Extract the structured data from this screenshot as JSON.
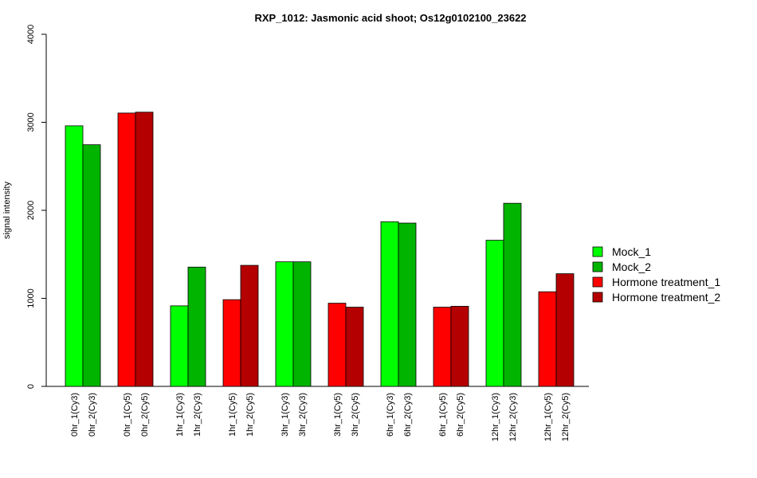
{
  "chart_data": {
    "type": "bar",
    "title": "RXP_1012: Jasmonic acid shoot; Os12g0102100_23622",
    "xlabel": "",
    "ylabel": "signal intensity",
    "ylim": [
      0,
      4000
    ],
    "yticks": [
      "0",
      "1000",
      "2000",
      "3000",
      "4000"
    ],
    "grid": false,
    "legend_position": "right",
    "legend": [
      {
        "name": "Mock_1",
        "color": "#00ff00"
      },
      {
        "name": "Mock_2",
        "color": "#00b400"
      },
      {
        "name": "Hormone treatment_1",
        "color": "#ff0000"
      },
      {
        "name": "Hormone treatment_2",
        "color": "#b40000"
      }
    ],
    "bars": [
      {
        "label": "0hr_1(Cy3)",
        "value": 2960,
        "color": "#00ff00"
      },
      {
        "label": "0hr_2(Cy3)",
        "value": 2745,
        "color": "#00b400"
      },
      {
        "label": "0hr_1(Cy5)",
        "value": 3105,
        "color": "#ff0000"
      },
      {
        "label": "0hr_2(Cy5)",
        "value": 3115,
        "color": "#b40000"
      },
      {
        "label": "1hr_1(Cy3)",
        "value": 915,
        "color": "#00ff00"
      },
      {
        "label": "1hr_2(Cy3)",
        "value": 1355,
        "color": "#00b400"
      },
      {
        "label": "1hr_1(Cy5)",
        "value": 985,
        "color": "#ff0000"
      },
      {
        "label": "1hr_2(Cy5)",
        "value": 1375,
        "color": "#b40000"
      },
      {
        "label": "3hr_1(Cy3)",
        "value": 1415,
        "color": "#00ff00"
      },
      {
        "label": "3hr_2(Cy3)",
        "value": 1415,
        "color": "#00b400"
      },
      {
        "label": "3hr_1(Cy5)",
        "value": 945,
        "color": "#ff0000"
      },
      {
        "label": "3hr_2(Cy5)",
        "value": 900,
        "color": "#b40000"
      },
      {
        "label": "6hr_1(Cy3)",
        "value": 1870,
        "color": "#00ff00"
      },
      {
        "label": "6hr_2(Cy3)",
        "value": 1855,
        "color": "#00b400"
      },
      {
        "label": "6hr_1(Cy5)",
        "value": 900,
        "color": "#ff0000"
      },
      {
        "label": "6hr_2(Cy5)",
        "value": 910,
        "color": "#b40000"
      },
      {
        "label": "12hr_1(Cy3)",
        "value": 1660,
        "color": "#00ff00"
      },
      {
        "label": "12hr_2(Cy3)",
        "value": 2080,
        "color": "#00b400"
      },
      {
        "label": "12hr_1(Cy5)",
        "value": 1075,
        "color": "#ff0000"
      },
      {
        "label": "12hr_2(Cy5)",
        "value": 1280,
        "color": "#b40000"
      }
    ]
  }
}
